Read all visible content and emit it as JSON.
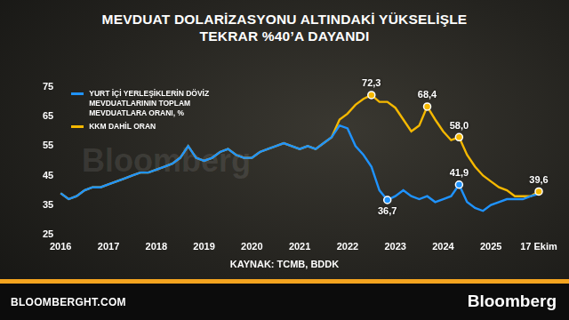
{
  "chart_data": {
    "type": "line",
    "title": "MEVDUAT DOLARİZASYONU ALTINDAKİ YÜKSELİŞLE\nTEKRAR %40’A DAYANDI",
    "source": "KAYNAK: TCMB, BDDK",
    "footer": "BLOOMBERGHT.COM",
    "brand": "Bloomberg",
    "watermark": "Bloomberg",
    "categories": [
      "2016",
      null,
      null,
      null,
      null,
      null,
      "2017",
      null,
      null,
      null,
      null,
      null,
      "2018",
      null,
      null,
      null,
      null,
      null,
      "2019",
      null,
      null,
      null,
      null,
      null,
      "2020",
      null,
      null,
      null,
      null,
      null,
      "2021",
      null,
      null,
      null,
      null,
      null,
      "2022",
      null,
      null,
      null,
      null,
      null,
      "2023",
      null,
      null,
      null,
      null,
      null,
      "2024",
      null,
      null,
      null,
      null,
      null,
      "2025",
      null,
      null,
      null,
      null,
      null,
      "17 Ekim"
    ],
    "series": [
      {
        "name": "YURT İÇİ YERLEŞİKLERİN DÖVİZ MEVDUATLARININ TOPLAM MEVDUATLARA ORANI, %",
        "color": "#1f93ff",
        "values": [
          39,
          37,
          38,
          40,
          41,
          41,
          42,
          43,
          44,
          45,
          46,
          46,
          47,
          48,
          49,
          51,
          55,
          51,
          50,
          51,
          53,
          54,
          52,
          51,
          51,
          53,
          54,
          55,
          56,
          55,
          54,
          55,
          54,
          56,
          58,
          62,
          61,
          55,
          52,
          48,
          40,
          36.7,
          38,
          40,
          38,
          37,
          38,
          36,
          37,
          38,
          41.9,
          36,
          34,
          33,
          35,
          36,
          37,
          37,
          37,
          38,
          38.8
        ],
        "value_labels": [
          null,
          null,
          null,
          null,
          null,
          null,
          null,
          null,
          null,
          null,
          null,
          null,
          null,
          null,
          null,
          null,
          null,
          null,
          null,
          null,
          null,
          null,
          null,
          null,
          null,
          null,
          null,
          null,
          null,
          null,
          null,
          null,
          null,
          null,
          null,
          null,
          null,
          null,
          null,
          null,
          null,
          "36,7",
          null,
          null,
          null,
          null,
          null,
          null,
          null,
          null,
          "41,9",
          null,
          null,
          null,
          null,
          null,
          null,
          null,
          null,
          null,
          null
        ]
      },
      {
        "name": "KKM DAHİL ORAN",
        "color": "#f5b800",
        "values": [
          39,
          37,
          38,
          40,
          41,
          41,
          42,
          43,
          44,
          45,
          46,
          46,
          47,
          48,
          49,
          51,
          55,
          51,
          50,
          51,
          53,
          54,
          52,
          51,
          51,
          53,
          54,
          55,
          56,
          55,
          54,
          55,
          54,
          56,
          58,
          64,
          66,
          69,
          71,
          72.3,
          70,
          70,
          68,
          64,
          60,
          62,
          68.4,
          64,
          60,
          57,
          58.0,
          52,
          48,
          45,
          43,
          41,
          40,
          38,
          38,
          38,
          39.6
        ],
        "value_labels": [
          null,
          null,
          null,
          null,
          null,
          null,
          null,
          null,
          null,
          null,
          null,
          null,
          null,
          null,
          null,
          null,
          null,
          null,
          null,
          null,
          null,
          null,
          null,
          null,
          null,
          null,
          null,
          null,
          null,
          null,
          null,
          null,
          null,
          null,
          null,
          null,
          null,
          null,
          null,
          "72,3",
          null,
          null,
          null,
          null,
          null,
          null,
          "68,4",
          null,
          null,
          null,
          "58,0",
          null,
          null,
          null,
          null,
          null,
          null,
          null,
          null,
          null,
          "39,6"
        ]
      }
    ],
    "ylim": [
      25,
      75
    ],
    "yticks": [
      25,
      35,
      45,
      55,
      65,
      75
    ],
    "grid": false,
    "legend": "upper left"
  }
}
